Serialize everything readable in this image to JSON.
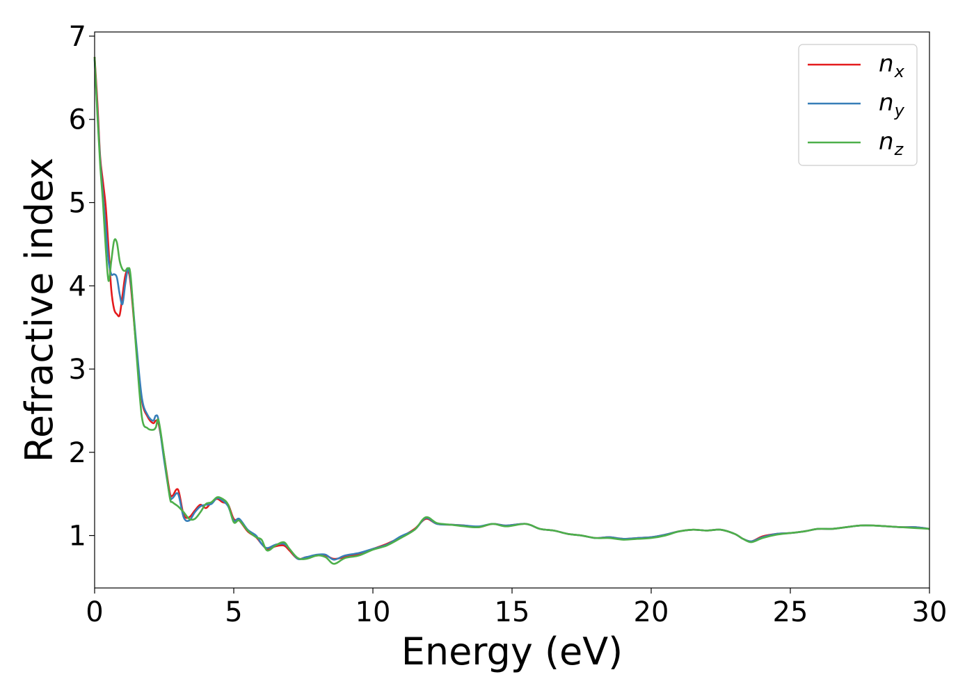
{
  "chart_data": {
    "type": "line",
    "xlabel": "Energy (eV)",
    "ylabel": "Refractive index",
    "xlim": [
      0,
      30
    ],
    "ylim": [
      0.37,
      7.05
    ],
    "xticks": [
      0,
      5,
      10,
      15,
      20,
      25,
      30
    ],
    "yticks": [
      1,
      2,
      3,
      4,
      5,
      6,
      7
    ],
    "grid": false,
    "legend_position": "top-right",
    "series": [
      {
        "name": "n",
        "subscript": "x",
        "color": "#e41a1c",
        "x": [
          0,
          0.1,
          0.2,
          0.3,
          0.4,
          0.5,
          0.6,
          0.7,
          0.8,
          0.9,
          1.0,
          1.1,
          1.2,
          1.3,
          1.5,
          1.7,
          1.9,
          2.1,
          2.2,
          2.3,
          2.5,
          2.7,
          2.8,
          3.0,
          3.2,
          3.4,
          3.6,
          3.8,
          4.0,
          4.2,
          4.4,
          4.6,
          4.8,
          5.0,
          5.2,
          5.5,
          5.8,
          6.0,
          6.2,
          6.5,
          6.8,
          7.0,
          7.3,
          7.6,
          8.0,
          8.3,
          8.6,
          9.0,
          9.5,
          10.0,
          10.5,
          11.0,
          11.5,
          11.9,
          12.3,
          12.8,
          13.3,
          13.8,
          14.3,
          14.8,
          15.5,
          16.0,
          16.5,
          17.0,
          17.5,
          18.0,
          18.5,
          19.0,
          19.5,
          20.0,
          20.5,
          21.0,
          21.5,
          22.0,
          22.5,
          23.0,
          23.3,
          23.6,
          24.0,
          24.5,
          25.0,
          25.5,
          26.0,
          26.5,
          27.0,
          27.5,
          28.0,
          28.5,
          29.0,
          29.5,
          30.0
        ],
        "y": [
          6.75,
          6.2,
          5.55,
          5.25,
          4.95,
          4.45,
          3.95,
          3.72,
          3.66,
          3.65,
          3.88,
          4.12,
          4.18,
          4.0,
          3.25,
          2.62,
          2.43,
          2.35,
          2.38,
          2.34,
          1.95,
          1.52,
          1.48,
          1.55,
          1.25,
          1.22,
          1.3,
          1.37,
          1.33,
          1.4,
          1.44,
          1.4,
          1.37,
          1.2,
          1.18,
          1.05,
          0.98,
          0.9,
          0.84,
          0.87,
          0.88,
          0.82,
          0.72,
          0.74,
          0.76,
          0.76,
          0.72,
          0.74,
          0.78,
          0.84,
          0.9,
          0.98,
          1.08,
          1.2,
          1.14,
          1.13,
          1.12,
          1.1,
          1.14,
          1.12,
          1.14,
          1.08,
          1.06,
          1.02,
          1.0,
          0.97,
          0.98,
          0.96,
          0.97,
          0.98,
          1.01,
          1.05,
          1.07,
          1.06,
          1.07,
          1.02,
          0.96,
          0.93,
          0.99,
          1.02,
          1.03,
          1.05,
          1.08,
          1.08,
          1.1,
          1.12,
          1.12,
          1.11,
          1.1,
          1.1,
          1.08
        ]
      },
      {
        "name": "n",
        "subscript": "y",
        "color": "#377eb8",
        "x": [
          0,
          0.1,
          0.2,
          0.3,
          0.4,
          0.5,
          0.6,
          0.7,
          0.8,
          0.9,
          1.0,
          1.1,
          1.2,
          1.3,
          1.5,
          1.7,
          1.9,
          2.1,
          2.2,
          2.3,
          2.5,
          2.7,
          2.8,
          3.0,
          3.2,
          3.4,
          3.6,
          3.8,
          4.0,
          4.2,
          4.4,
          4.6,
          4.8,
          5.0,
          5.2,
          5.5,
          5.8,
          6.0,
          6.2,
          6.5,
          6.8,
          7.0,
          7.3,
          7.6,
          8.0,
          8.3,
          8.6,
          9.0,
          9.5,
          10.0,
          10.5,
          11.0,
          11.5,
          11.9,
          12.3,
          12.8,
          13.3,
          13.8,
          14.3,
          14.8,
          15.5,
          16.0,
          16.5,
          17.0,
          17.5,
          18.0,
          18.5,
          19.0,
          19.5,
          20.0,
          20.5,
          21.0,
          21.5,
          22.0,
          22.5,
          23.0,
          23.3,
          23.6,
          24.0,
          24.5,
          25.0,
          25.5,
          26.0,
          26.5,
          27.0,
          27.5,
          28.0,
          28.5,
          29.0,
          29.5,
          30.0
        ],
        "y": [
          6.72,
          6.1,
          5.5,
          5.1,
          4.7,
          4.3,
          4.14,
          4.14,
          4.1,
          3.9,
          3.78,
          4.02,
          4.19,
          4.05,
          3.3,
          2.65,
          2.45,
          2.38,
          2.44,
          2.38,
          1.9,
          1.48,
          1.45,
          1.5,
          1.22,
          1.18,
          1.28,
          1.35,
          1.37,
          1.38,
          1.45,
          1.42,
          1.35,
          1.18,
          1.2,
          1.07,
          1.0,
          0.9,
          0.85,
          0.89,
          0.9,
          0.84,
          0.72,
          0.74,
          0.77,
          0.77,
          0.71,
          0.76,
          0.79,
          0.84,
          0.89,
          0.99,
          1.07,
          1.21,
          1.14,
          1.13,
          1.12,
          1.11,
          1.14,
          1.12,
          1.14,
          1.08,
          1.06,
          1.02,
          1.0,
          0.97,
          0.98,
          0.96,
          0.97,
          0.98,
          1.01,
          1.05,
          1.07,
          1.06,
          1.07,
          1.02,
          0.96,
          0.93,
          0.98,
          1.02,
          1.03,
          1.05,
          1.08,
          1.08,
          1.1,
          1.12,
          1.12,
          1.11,
          1.1,
          1.1,
          1.08
        ]
      },
      {
        "name": "n",
        "subscript": "z",
        "color": "#4daf4a",
        "x": [
          0,
          0.1,
          0.2,
          0.3,
          0.4,
          0.5,
          0.6,
          0.7,
          0.8,
          0.9,
          1.0,
          1.1,
          1.2,
          1.3,
          1.5,
          1.7,
          1.9,
          2.1,
          2.2,
          2.3,
          2.5,
          2.7,
          2.8,
          3.0,
          3.2,
          3.4,
          3.6,
          3.8,
          4.0,
          4.2,
          4.4,
          4.6,
          4.8,
          5.0,
          5.2,
          5.5,
          5.8,
          6.0,
          6.2,
          6.5,
          6.8,
          7.0,
          7.3,
          7.6,
          8.0,
          8.3,
          8.6,
          9.0,
          9.5,
          10.0,
          10.5,
          11.0,
          11.5,
          11.9,
          12.3,
          12.8,
          13.3,
          13.8,
          14.3,
          14.8,
          15.5,
          16.0,
          16.5,
          17.0,
          17.5,
          18.0,
          18.5,
          19.0,
          19.5,
          20.0,
          20.5,
          21.0,
          21.5,
          22.0,
          22.5,
          23.0,
          23.3,
          23.6,
          24.0,
          24.5,
          25.0,
          25.5,
          26.0,
          26.5,
          27.0,
          27.5,
          28.0,
          28.5,
          29.0,
          29.5,
          30.0
        ],
        "y": [
          6.75,
          6.05,
          5.45,
          5.0,
          4.45,
          4.06,
          4.3,
          4.54,
          4.52,
          4.3,
          4.2,
          4.18,
          4.21,
          4.1,
          3.2,
          2.42,
          2.29,
          2.27,
          2.3,
          2.38,
          1.95,
          1.46,
          1.4,
          1.35,
          1.28,
          1.2,
          1.2,
          1.28,
          1.38,
          1.4,
          1.46,
          1.44,
          1.37,
          1.16,
          1.18,
          1.06,
          0.98,
          0.95,
          0.82,
          0.88,
          0.92,
          0.84,
          0.73,
          0.72,
          0.76,
          0.74,
          0.66,
          0.73,
          0.76,
          0.83,
          0.88,
          0.97,
          1.07,
          1.22,
          1.15,
          1.13,
          1.11,
          1.1,
          1.14,
          1.11,
          1.14,
          1.08,
          1.06,
          1.02,
          1.0,
          0.97,
          0.97,
          0.95,
          0.96,
          0.97,
          1.0,
          1.05,
          1.07,
          1.06,
          1.07,
          1.02,
          0.96,
          0.92,
          0.97,
          1.01,
          1.03,
          1.05,
          1.08,
          1.08,
          1.1,
          1.12,
          1.12,
          1.11,
          1.1,
          1.09,
          1.08
        ]
      }
    ]
  }
}
